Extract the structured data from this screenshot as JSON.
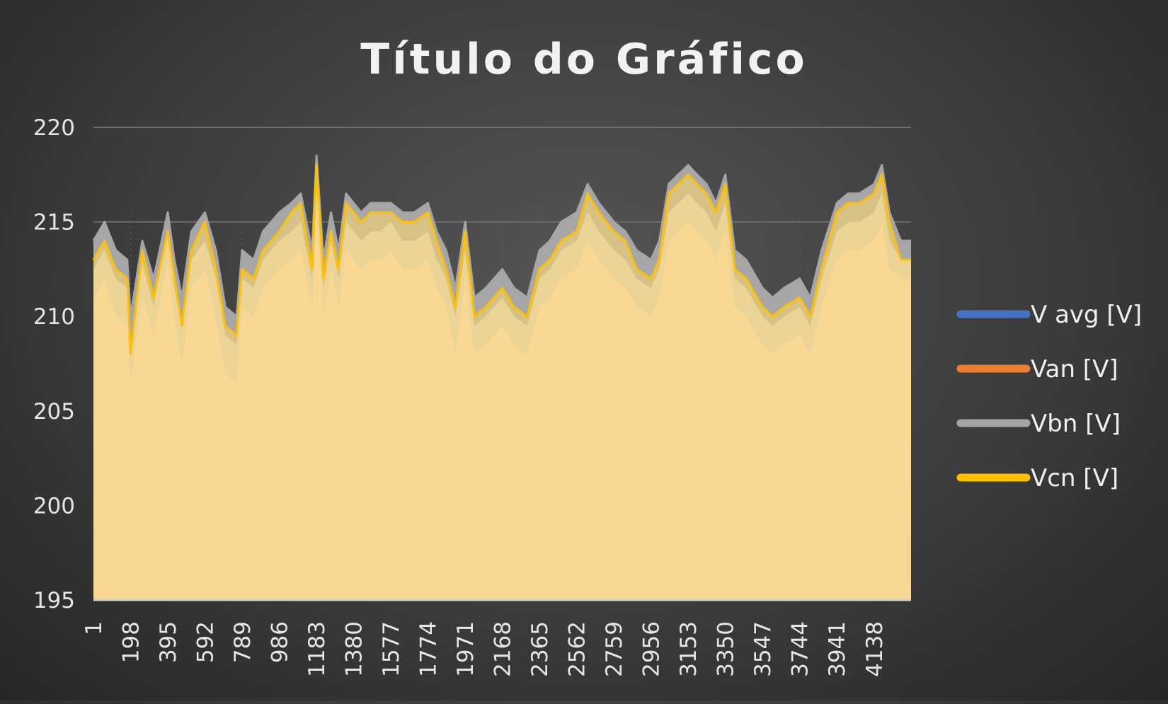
{
  "chart_data": {
    "type": "area",
    "title": "Título do Gráfico",
    "xlabel": "",
    "ylabel": "",
    "ylim": [
      195,
      220
    ],
    "xlim": [
      1,
      4334
    ],
    "yticks": [
      195,
      200,
      205,
      210,
      215,
      220
    ],
    "xticks": [
      1,
      198,
      395,
      592,
      789,
      986,
      1183,
      1380,
      1577,
      1774,
      1971,
      2168,
      2365,
      2562,
      2759,
      2956,
      3153,
      3350,
      3547,
      3744,
      3941,
      4138
    ],
    "grid": "horizontal",
    "legend_position": "right",
    "colors": {
      "V avg [V]": "#4472c4",
      "Van [V]": "#ed7d31",
      "Vbn [V]": "#a5a5a5",
      "Vcn [V]": "#ffc000"
    },
    "x": [
      1,
      60,
      120,
      180,
      198,
      260,
      320,
      395,
      430,
      470,
      520,
      592,
      650,
      700,
      760,
      789,
      850,
      900,
      986,
      1050,
      1100,
      1160,
      1183,
      1220,
      1260,
      1300,
      1340,
      1380,
      1420,
      1470,
      1520,
      1577,
      1640,
      1700,
      1774,
      1820,
      1870,
      1920,
      1971,
      2020,
      2080,
      2168,
      2230,
      2300,
      2365,
      2420,
      2480,
      2562,
      2620,
      2680,
      2759,
      2820,
      2880,
      2956,
      3000,
      3050,
      3100,
      3153,
      3200,
      3250,
      3300,
      3350,
      3400,
      3460,
      3547,
      3600,
      3660,
      3744,
      3800,
      3860,
      3941,
      4000,
      4060,
      4138,
      4180,
      4220,
      4280,
      4334
    ],
    "series": [
      {
        "name": "V avg [V]",
        "values": [
          212.5,
          213.5,
          212.0,
          211.5,
          208.5,
          212.8,
          210.5,
          214.5,
          211.5,
          209.5,
          213.0,
          214.0,
          212.0,
          209.0,
          208.5,
          212.0,
          211.5,
          213.0,
          214.0,
          214.5,
          215.0,
          212.0,
          217.0,
          211.5,
          214.0,
          212.0,
          215.0,
          214.5,
          214.0,
          214.5,
          214.5,
          215.0,
          214.0,
          214.0,
          214.5,
          213.0,
          212.0,
          210.0,
          213.5,
          209.5,
          210.0,
          211.0,
          210.0,
          209.5,
          212.0,
          212.5,
          213.5,
          214.0,
          215.5,
          214.5,
          213.5,
          213.0,
          212.0,
          211.5,
          212.5,
          215.5,
          216.0,
          216.5,
          216.0,
          215.5,
          214.5,
          216.0,
          212.0,
          211.5,
          210.0,
          209.5,
          210.0,
          210.5,
          209.5,
          212.0,
          214.5,
          215.0,
          215.0,
          215.5,
          216.5,
          214.0,
          213.0,
          213.0
        ]
      },
      {
        "name": "Van [V]",
        "values": [
          211.0,
          212.0,
          210.0,
          209.5,
          206.5,
          211.0,
          209.0,
          213.0,
          210.0,
          207.5,
          211.5,
          212.5,
          210.0,
          207.0,
          206.5,
          210.5,
          210.0,
          211.5,
          212.5,
          213.0,
          213.5,
          210.5,
          215.5,
          210.0,
          212.5,
          210.5,
          213.5,
          213.0,
          212.5,
          213.0,
          213.0,
          213.5,
          212.5,
          212.5,
          213.0,
          211.5,
          210.5,
          208.0,
          212.0,
          208.0,
          208.5,
          209.5,
          208.5,
          208.0,
          210.5,
          211.0,
          212.0,
          212.5,
          214.0,
          213.0,
          212.0,
          211.5,
          210.5,
          210.0,
          211.0,
          214.0,
          214.5,
          215.0,
          214.5,
          214.0,
          213.0,
          214.5,
          210.5,
          210.0,
          208.5,
          208.0,
          208.5,
          209.0,
          208.0,
          210.5,
          213.0,
          213.5,
          213.5,
          214.0,
          215.0,
          212.5,
          212.0,
          212.0
        ]
      },
      {
        "name": "Vbn [V]",
        "values": [
          214.0,
          215.0,
          213.5,
          213.0,
          210.0,
          214.0,
          212.0,
          215.5,
          213.0,
          211.0,
          214.5,
          215.5,
          213.5,
          210.5,
          210.0,
          213.5,
          213.0,
          214.5,
          215.5,
          216.0,
          216.5,
          213.5,
          218.5,
          213.0,
          215.5,
          213.5,
          216.5,
          216.0,
          215.5,
          216.0,
          216.0,
          216.0,
          215.5,
          215.5,
          216.0,
          214.5,
          213.5,
          211.5,
          215.0,
          211.0,
          211.5,
          212.5,
          211.5,
          211.0,
          213.5,
          214.0,
          215.0,
          215.5,
          217.0,
          216.0,
          215.0,
          214.5,
          213.5,
          213.0,
          214.0,
          217.0,
          217.5,
          218.0,
          217.5,
          217.0,
          216.0,
          217.5,
          213.5,
          213.0,
          211.5,
          211.0,
          211.5,
          212.0,
          211.0,
          213.5,
          216.0,
          216.5,
          216.5,
          217.0,
          218.0,
          215.5,
          214.0,
          214.0
        ]
      },
      {
        "name": "Vcn [V]",
        "values": [
          213.0,
          214.0,
          212.5,
          212.0,
          208.0,
          213.5,
          211.0,
          214.5,
          212.0,
          209.5,
          213.5,
          215.0,
          212.5,
          209.5,
          209.0,
          212.5,
          212.0,
          213.5,
          214.5,
          215.5,
          216.0,
          212.5,
          218.0,
          212.0,
          214.5,
          212.5,
          216.0,
          215.5,
          215.0,
          215.5,
          215.5,
          215.5,
          215.0,
          215.0,
          215.5,
          214.0,
          212.5,
          210.5,
          214.5,
          210.0,
          210.5,
          211.5,
          210.5,
          210.0,
          212.5,
          213.0,
          214.0,
          214.5,
          216.5,
          215.5,
          214.5,
          214.0,
          212.5,
          212.0,
          213.0,
          216.5,
          217.0,
          217.5,
          217.0,
          216.5,
          215.5,
          217.0,
          212.5,
          212.0,
          210.5,
          210.0,
          210.5,
          211.0,
          210.0,
          212.5,
          215.5,
          216.0,
          216.0,
          216.5,
          217.5,
          215.0,
          213.0,
          213.0
        ]
      }
    ]
  }
}
